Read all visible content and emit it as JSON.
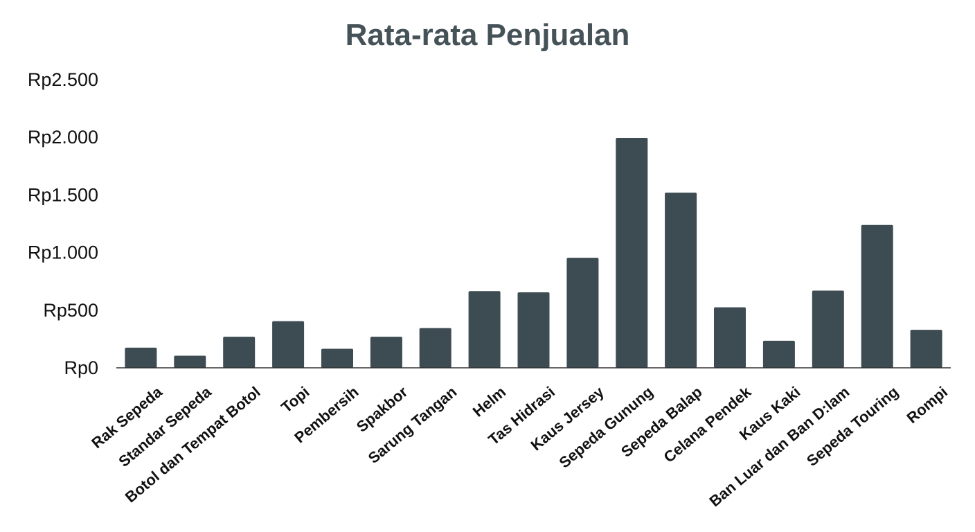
{
  "chart_data": {
    "type": "bar",
    "title": "Rata-rata Penjualan",
    "xlabel": "",
    "ylabel": "",
    "categories": [
      "Rak Sepeda",
      "Standar Sepeda",
      "Botol dan Tempat Botol",
      "Topi",
      "Pembersih",
      "Spakbor",
      "Sarung Tangan",
      "Helm",
      "Tas Hidrasi",
      "Kaus Jersey",
      "Sepeda Gunung",
      "Sepeda Balap",
      "Celana Pendek",
      "Kaus Kaki",
      "Ban Luar dan Ban D:lam",
      "Sepeda Touring",
      "Rompi"
    ],
    "values": [
      175,
      105,
      270,
      405,
      165,
      270,
      345,
      665,
      655,
      955,
      1995,
      1520,
      525,
      235,
      670,
      1240,
      330
    ],
    "ylim": [
      0,
      2500
    ],
    "yticks": [
      0,
      500,
      1000,
      1500,
      2000,
      2500
    ],
    "ytick_labels": [
      "Rp0",
      "Rp500",
      "Rp1.000",
      "Rp1.500",
      "Rp2.000",
      "Rp2.500"
    ],
    "grid": false,
    "legend": "none",
    "bar_color": "#3d4b52",
    "title_color": "#455258"
  }
}
